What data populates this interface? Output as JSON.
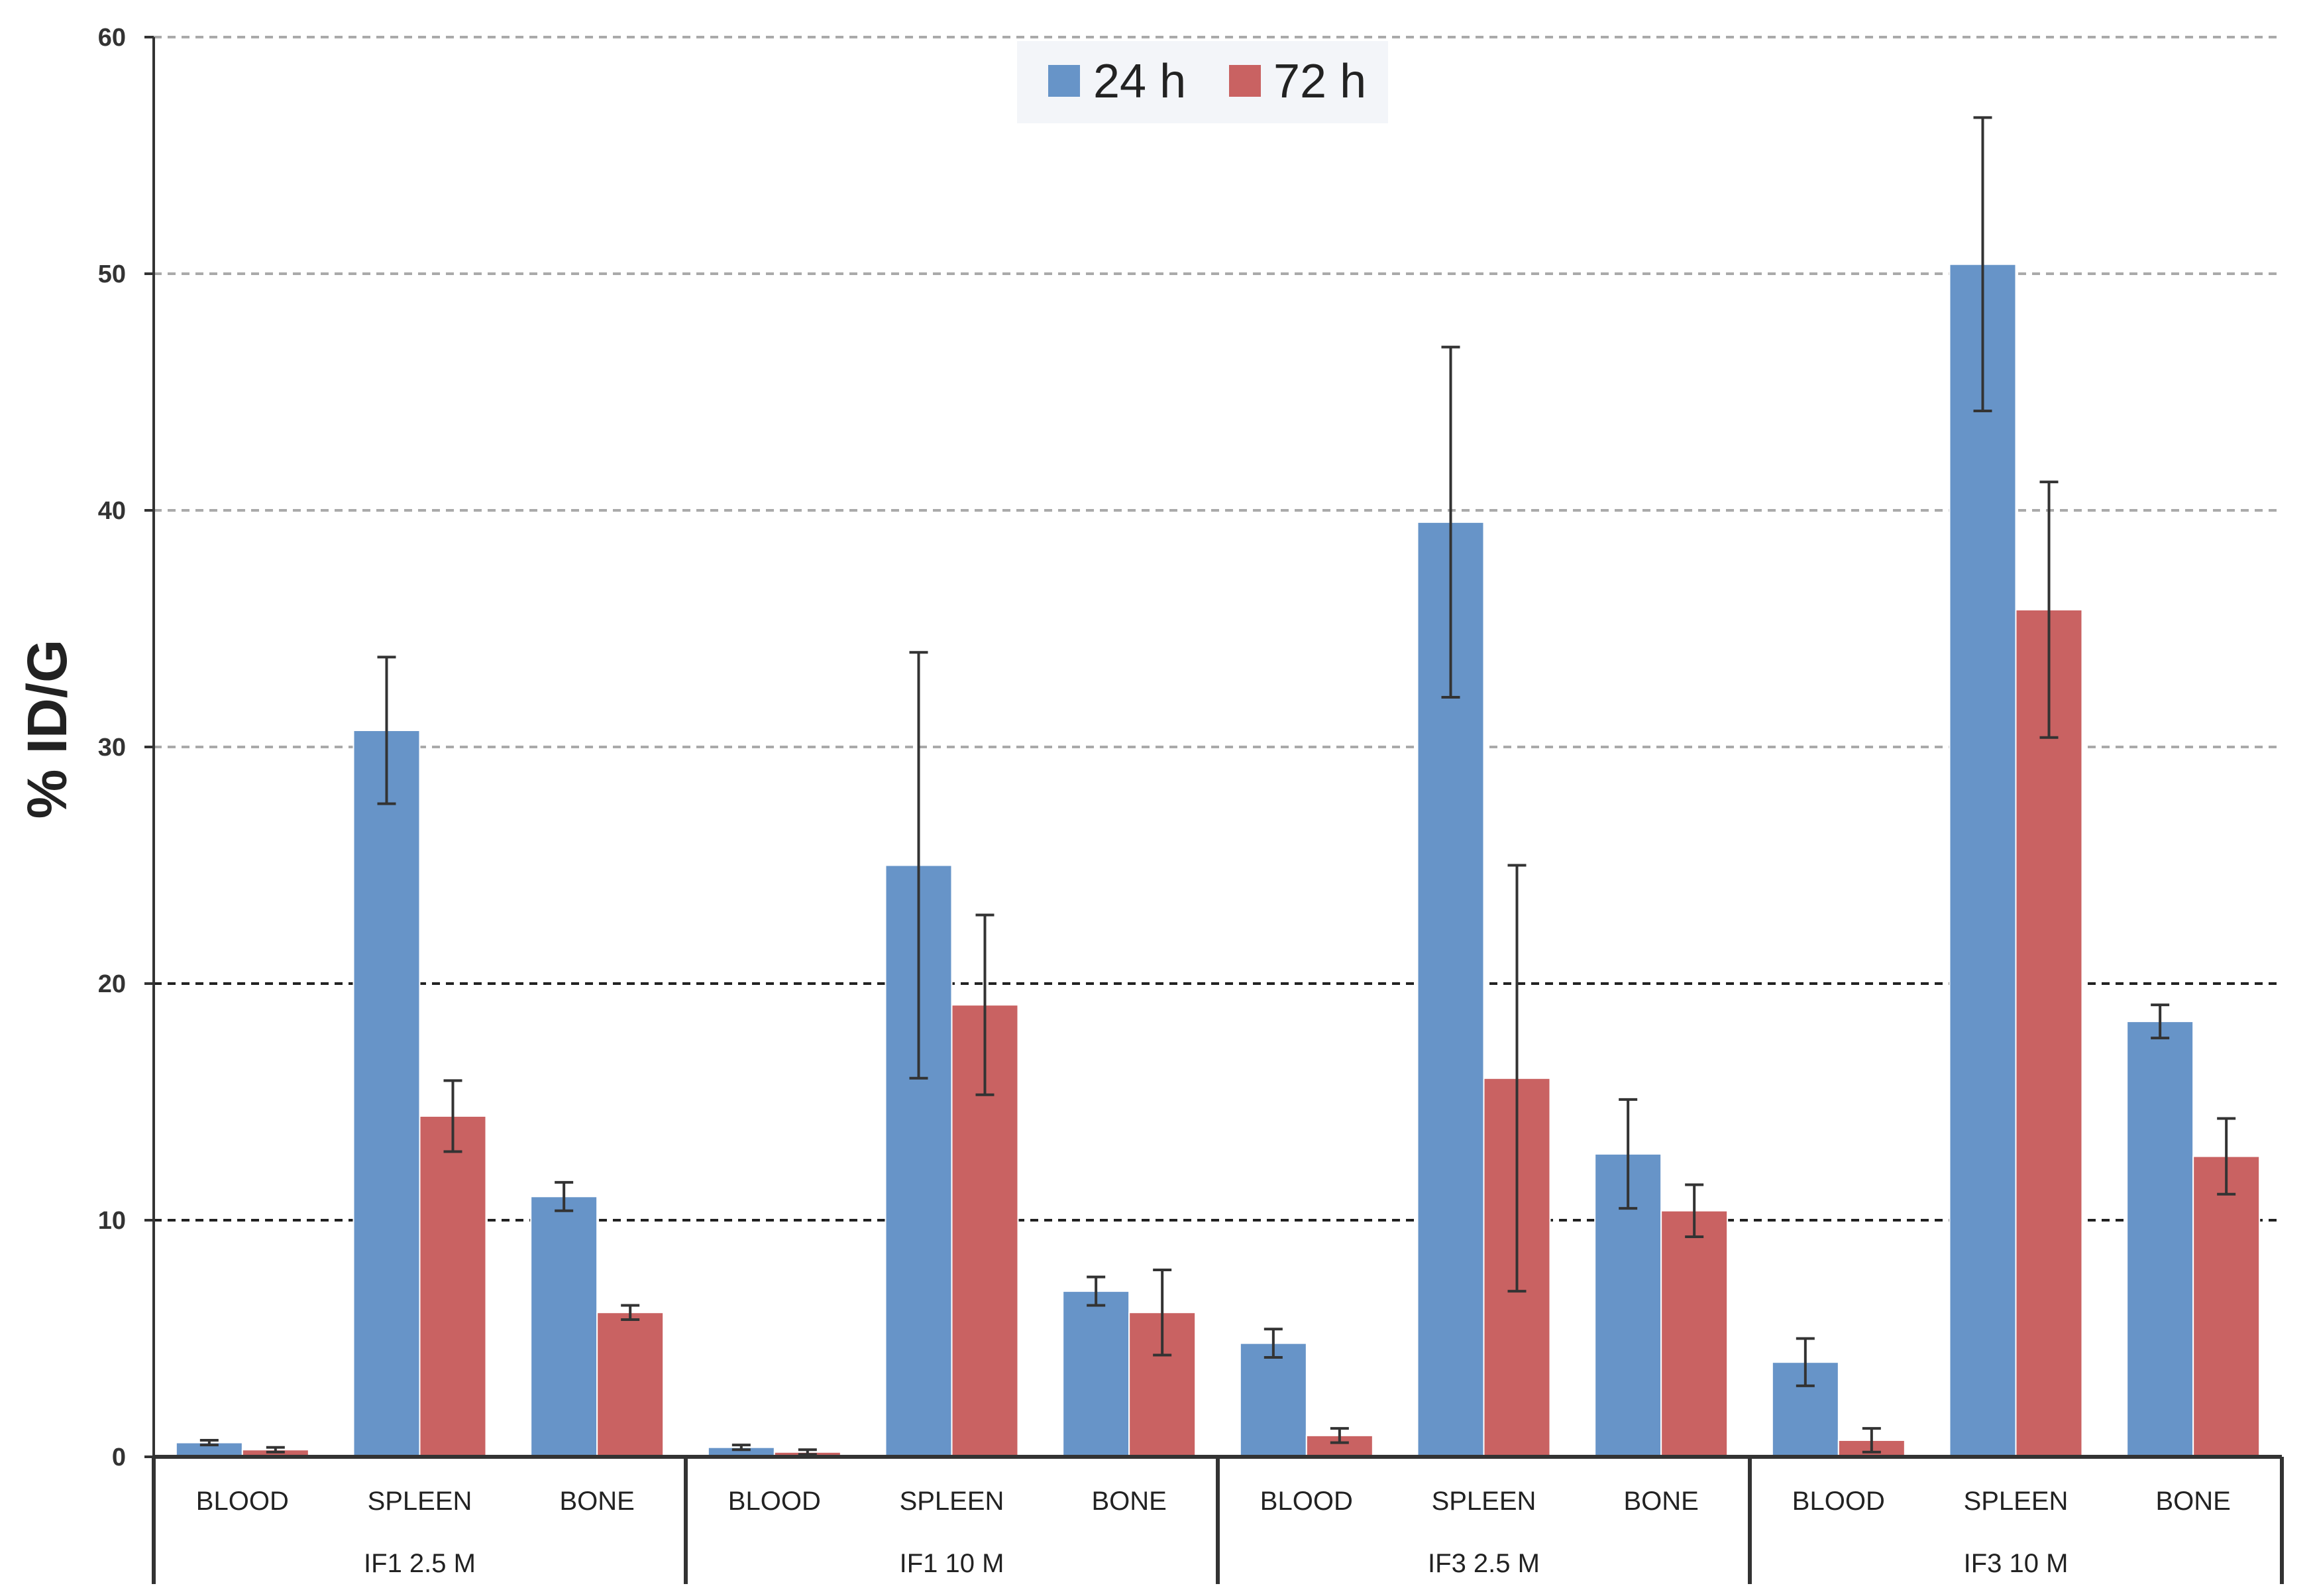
{
  "chart_data": {
    "type": "bar",
    "title": "",
    "ylabel": "% ID/G",
    "xlabel": "",
    "ylim": [
      0,
      60
    ],
    "yticks": [
      0,
      10,
      20,
      30,
      40,
      50,
      60
    ],
    "legend_position": "top-center",
    "groups": [
      {
        "label": "IF1 2.5 M",
        "categories": [
          "BLOOD",
          "SPLEEN",
          "BONE"
        ]
      },
      {
        "label": "IF1 10 M",
        "categories": [
          "BLOOD",
          "SPLEEN",
          "BONE"
        ]
      },
      {
        "label": "IF3 2.5 M",
        "categories": [
          "BLOOD",
          "SPLEEN",
          "BONE"
        ]
      },
      {
        "label": "IF3 10 M",
        "categories": [
          "BLOOD",
          "SPLEEN",
          "BONE"
        ]
      }
    ],
    "series": [
      {
        "name": "24 h",
        "color": "#6794C8",
        "values": [
          0.6,
          30.7,
          11.0,
          0.4,
          25.0,
          7.0,
          4.8,
          39.5,
          12.8,
          4.0,
          50.4,
          18.4
        ],
        "errors": [
          0.1,
          3.1,
          0.6,
          0.1,
          9.0,
          0.6,
          0.6,
          7.4,
          2.3,
          1.0,
          6.2,
          0.7
        ]
      },
      {
        "name": "72 h",
        "color": "#C96262",
        "values": [
          0.3,
          14.4,
          6.1,
          0.2,
          19.1,
          6.1,
          0.9,
          16.0,
          10.4,
          0.7,
          35.8,
          12.7
        ],
        "errors": [
          0.1,
          1.5,
          0.3,
          0.1,
          3.8,
          1.8,
          0.3,
          9.0,
          1.1,
          0.5,
          5.4,
          1.6
        ]
      }
    ],
    "colors": {
      "axis": "#333333",
      "grid": "#aaaaaa",
      "grid_strong": "#222222",
      "error": "#333333"
    }
  }
}
